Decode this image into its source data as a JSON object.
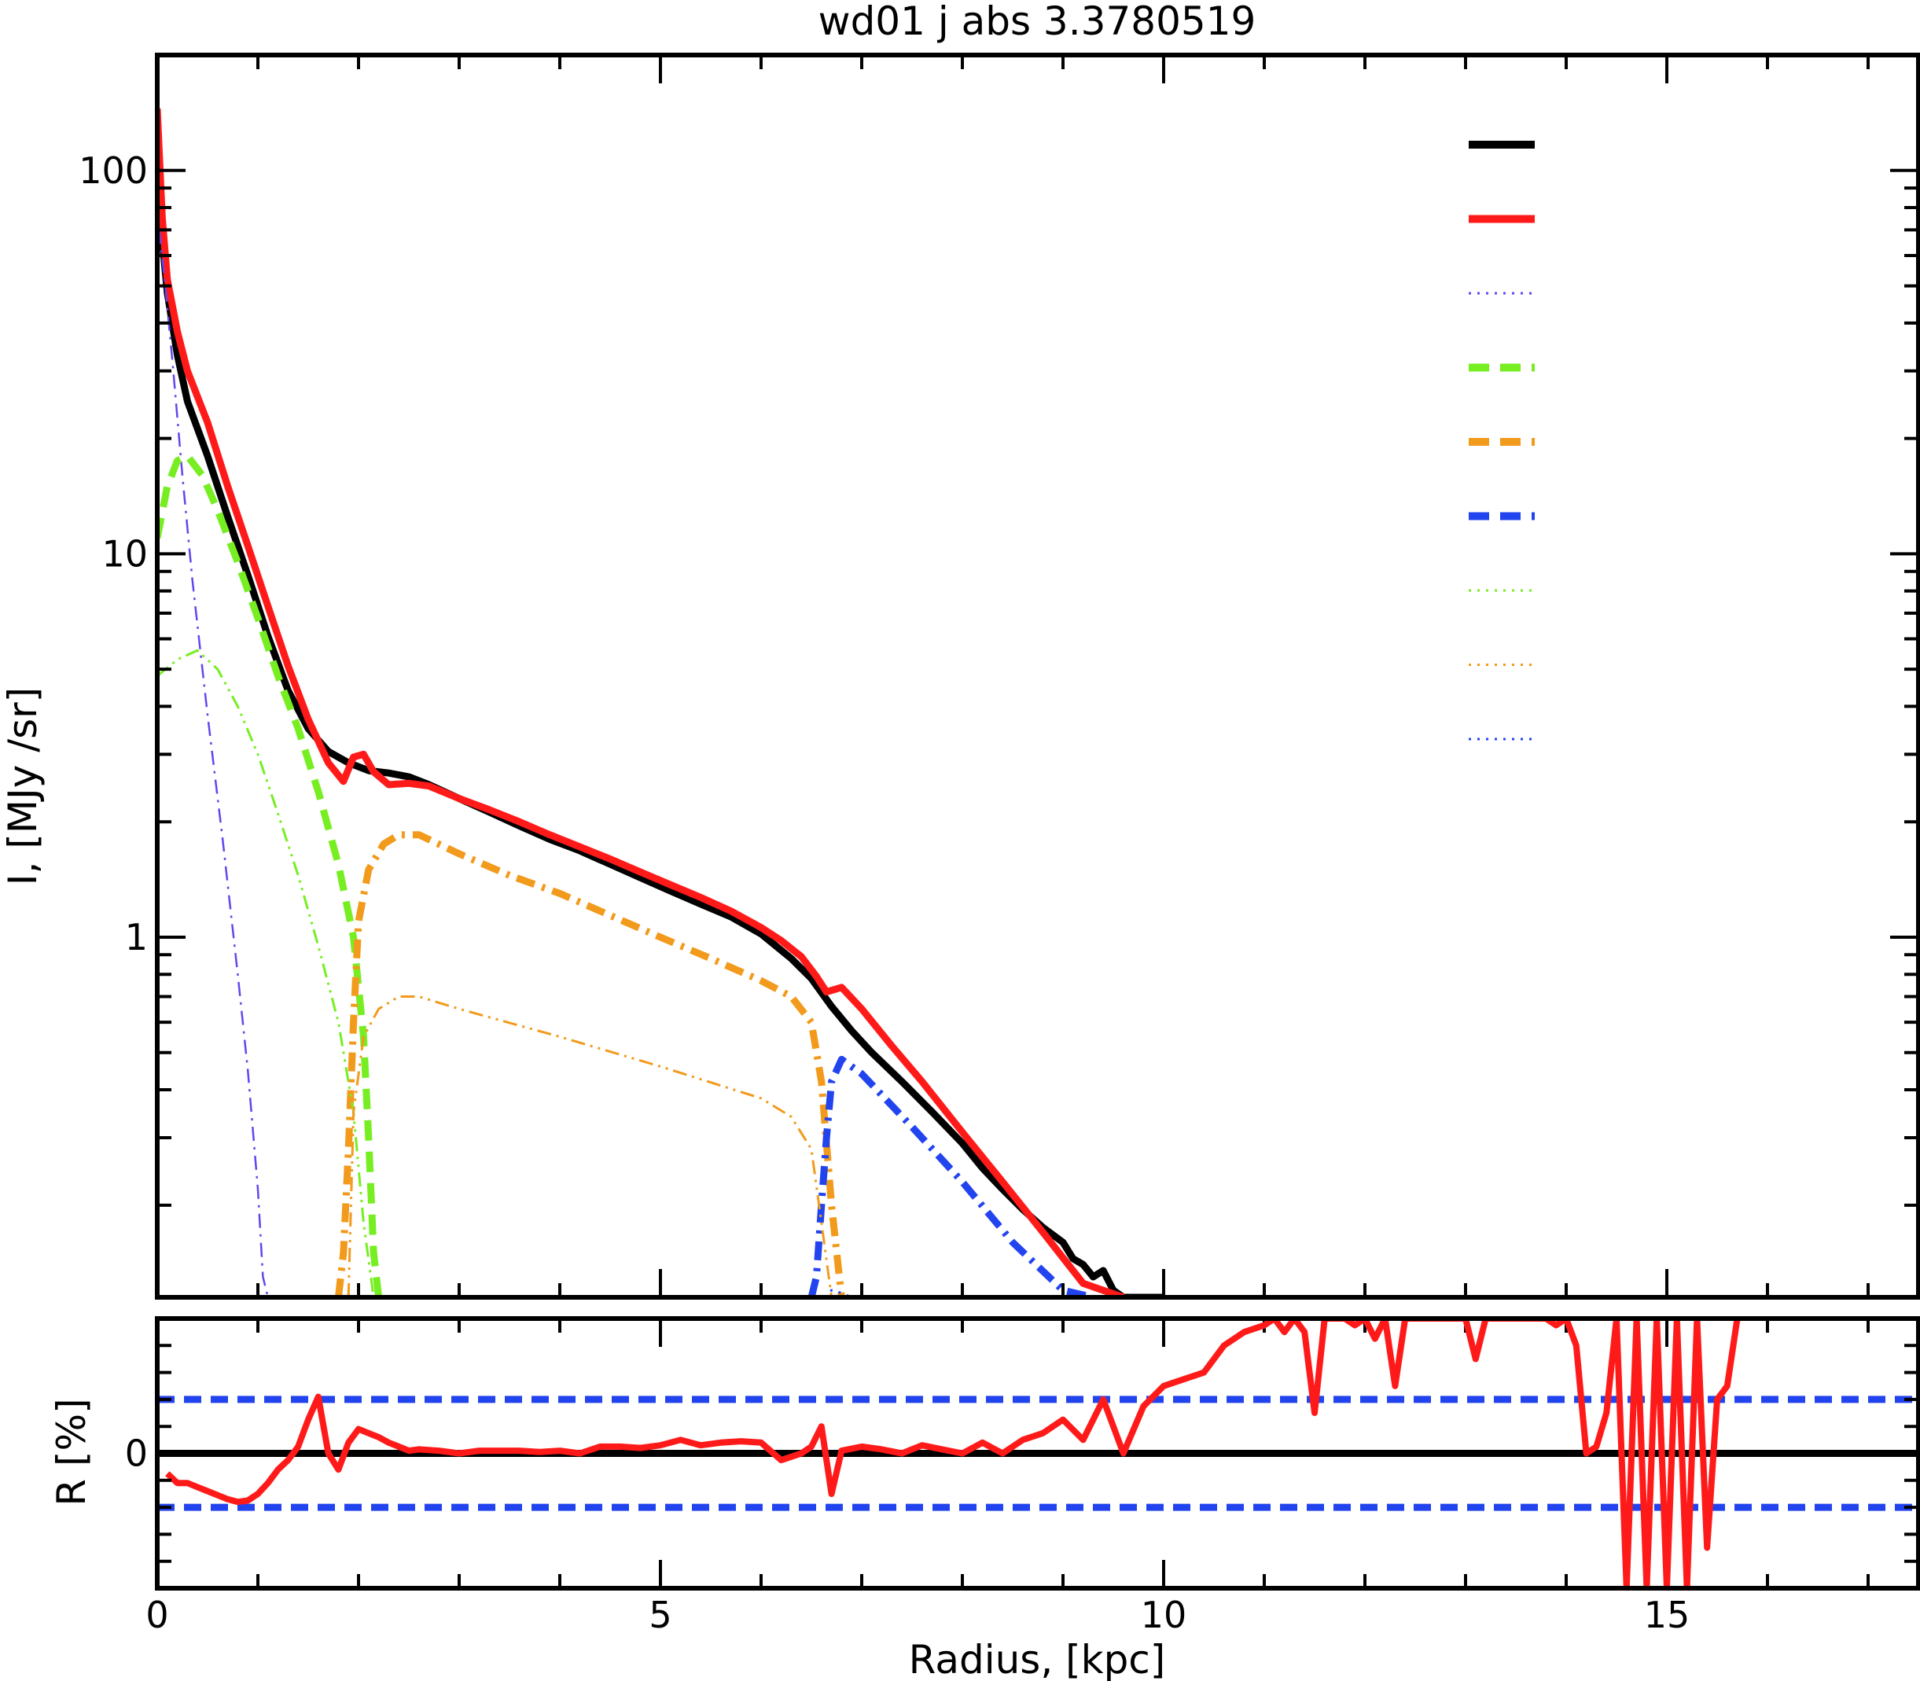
{
  "chart_data": {
    "type": "line",
    "title": "wd01 j abs 3.3780519",
    "xlabel": "Radius, [kpc]",
    "main_panel": {
      "ylabel": "I, [MJy /sr]",
      "yscale": "log",
      "xlim": [
        0,
        17.5
      ],
      "ylim": [
        0.115,
        200
      ],
      "ytick_labels": [
        "1",
        "10",
        "100"
      ],
      "legend_location": "top-right",
      "legend_swatches": [
        {
          "color": "#000000",
          "dash": "solid",
          "width": 10
        },
        {
          "color": "#ff1a1a",
          "dash": "solid",
          "width": 10
        },
        {
          "color": "#6644ee",
          "dash": "dotted-fine",
          "width": 3
        },
        {
          "color": "#77ee22",
          "dash": "dashed",
          "width": 10
        },
        {
          "color": "#f29a1c",
          "dash": "dashed",
          "width": 10
        },
        {
          "color": "#2244ee",
          "dash": "dashed",
          "width": 10
        },
        {
          "color": "#77ee22",
          "dash": "dotted-fine",
          "width": 3
        },
        {
          "color": "#f29a1c",
          "dash": "dotted-fine",
          "width": 3
        },
        {
          "color": "#2244ee",
          "dash": "dotted-fine",
          "width": 3
        }
      ],
      "series": [
        {
          "color": "#000000",
          "dash": "solid",
          "width": 9,
          "x": [
            0.0,
            0.1,
            0.2,
            0.3,
            0.5,
            0.7,
            0.9,
            1.1,
            1.3,
            1.5,
            1.7,
            1.9,
            2.1,
            2.3,
            2.5,
            2.7,
            3.0,
            3.3,
            3.6,
            3.9,
            4.2,
            4.5,
            4.8,
            5.1,
            5.4,
            5.7,
            6.0,
            6.3,
            6.5,
            6.7,
            6.9,
            7.1,
            7.4,
            7.7,
            8.0,
            8.2,
            8.4,
            8.6,
            8.8,
            9.0,
            9.1,
            9.2,
            9.3,
            9.4,
            9.5,
            9.6,
            9.7,
            9.8,
            9.9,
            10.0
          ],
          "y": [
            90,
            48,
            33,
            25,
            18,
            12.5,
            8.8,
            6.1,
            4.4,
            3.5,
            3.05,
            2.85,
            2.72,
            2.68,
            2.62,
            2.5,
            2.3,
            2.12,
            1.95,
            1.8,
            1.68,
            1.55,
            1.43,
            1.32,
            1.22,
            1.13,
            1.02,
            0.88,
            0.78,
            0.66,
            0.57,
            0.5,
            0.42,
            0.35,
            0.29,
            0.25,
            0.22,
            0.195,
            0.175,
            0.16,
            0.145,
            0.14,
            0.13,
            0.135,
            0.12,
            0.11,
            0.112,
            0.112,
            0.108,
            0.108
          ]
        },
        {
          "color": "#ff1a1a",
          "dash": "solid",
          "width": 9,
          "x": [
            0.0,
            0.02,
            0.05,
            0.1,
            0.2,
            0.3,
            0.5,
            0.7,
            0.9,
            1.1,
            1.3,
            1.5,
            1.7,
            1.85,
            1.95,
            2.05,
            2.15,
            2.3,
            2.5,
            2.7,
            3.0,
            3.3,
            3.6,
            3.9,
            4.2,
            4.5,
            4.8,
            5.1,
            5.4,
            5.7,
            6.0,
            6.2,
            6.4,
            6.55,
            6.65,
            6.8,
            7.0,
            7.3,
            7.6,
            8.0,
            8.4,
            8.8,
            9.2,
            9.6
          ],
          "y": [
            145,
            110,
            75,
            52,
            38,
            30,
            22,
            15,
            10.5,
            7.3,
            5.1,
            3.7,
            2.85,
            2.55,
            2.95,
            3.0,
            2.7,
            2.5,
            2.52,
            2.48,
            2.3,
            2.15,
            2.0,
            1.85,
            1.72,
            1.6,
            1.48,
            1.37,
            1.27,
            1.17,
            1.06,
            0.98,
            0.89,
            0.79,
            0.72,
            0.74,
            0.65,
            0.52,
            0.42,
            0.31,
            0.23,
            0.17,
            0.125,
            0.1
          ]
        },
        {
          "color": "#6644ee",
          "dash": "dashdot-fine",
          "width": 2.5,
          "x": [
            0.02,
            0.08,
            0.15,
            0.25,
            0.35,
            0.5,
            0.65,
            0.8,
            0.9,
            1.0,
            1.05,
            1.1
          ],
          "y": [
            70,
            50,
            32,
            16,
            8.5,
            3.8,
            1.8,
            0.8,
            0.45,
            0.22,
            0.13,
            0.1
          ]
        },
        {
          "color": "#77ee22",
          "dash": "dashed",
          "width": 9,
          "x": [
            0.0,
            0.1,
            0.2,
            0.3,
            0.45,
            0.6,
            0.8,
            1.0,
            1.2,
            1.4,
            1.6,
            1.8,
            1.95,
            2.05,
            2.1,
            2.15,
            2.2
          ],
          "y": [
            11,
            15,
            17.5,
            18,
            16,
            13,
            9.5,
            6.8,
            4.8,
            3.5,
            2.4,
            1.55,
            1.0,
            0.55,
            0.3,
            0.15,
            0.1
          ]
        },
        {
          "color": "#f29a1c",
          "dash": "dashdot",
          "width": 9,
          "x": [
            1.8,
            1.85,
            1.9,
            1.95,
            2.0,
            2.1,
            2.25,
            2.4,
            2.6,
            3.0,
            3.5,
            4.0,
            4.5,
            5.0,
            5.5,
            6.0,
            6.3,
            6.5,
            6.6,
            6.7,
            6.8
          ],
          "y": [
            0.1,
            0.15,
            0.28,
            0.6,
            1.1,
            1.5,
            1.75,
            1.85,
            1.85,
            1.65,
            1.45,
            1.3,
            1.14,
            1.0,
            0.88,
            0.77,
            0.7,
            0.6,
            0.42,
            0.2,
            0.1
          ]
        },
        {
          "color": "#2244ee",
          "dash": "dashdot",
          "width": 9,
          "x": [
            6.5,
            6.55,
            6.6,
            6.65,
            6.7,
            6.8,
            7.0,
            7.5,
            8.0,
            8.5,
            9.0,
            9.3
          ],
          "y": [
            0.1,
            0.13,
            0.2,
            0.3,
            0.42,
            0.48,
            0.44,
            0.32,
            0.23,
            0.16,
            0.12,
            0.1
          ]
        },
        {
          "color": "#77ee22",
          "dash": "dashdotdot-fine",
          "width": 3,
          "x": [
            0.0,
            0.2,
            0.4,
            0.6,
            0.8,
            1.0,
            1.2,
            1.4,
            1.6,
            1.8,
            1.95,
            2.05,
            2.15
          ],
          "y": [
            4.8,
            5.3,
            5.6,
            5.0,
            4.0,
            3.0,
            2.1,
            1.45,
            0.95,
            0.6,
            0.35,
            0.18,
            0.1
          ]
        },
        {
          "color": "#f29a1c",
          "dash": "dashdotdot-fine",
          "width": 3,
          "x": [
            1.9,
            1.95,
            2.05,
            2.2,
            2.4,
            2.6,
            3.0,
            4.0,
            5.0,
            6.0,
            6.3,
            6.5,
            6.6,
            6.7
          ],
          "y": [
            0.1,
            0.35,
            0.55,
            0.65,
            0.7,
            0.7,
            0.65,
            0.55,
            0.46,
            0.38,
            0.34,
            0.28,
            0.18,
            0.1
          ]
        },
        {
          "color": "#2244ee",
          "dash": "dotted-fine",
          "width": 3,
          "x": [
            6.55,
            6.6,
            6.65,
            6.7,
            6.8,
            6.9,
            7.0
          ],
          "y": [
            0.1,
            0.11,
            0.115,
            0.12,
            0.118,
            0.11,
            0.1
          ]
        }
      ]
    },
    "residual_panel": {
      "ylabel": "R [%]",
      "ytick_labels": [
        "0"
      ],
      "ylim": [
        -1,
        1
      ],
      "reference_lines": [
        {
          "y": 0,
          "color": "#000000",
          "dash": "solid"
        },
        {
          "y": 0.4,
          "color": "#2244ee",
          "dash": "dashed"
        },
        {
          "y": -0.4,
          "color": "#2244ee",
          "dash": "dashed"
        }
      ],
      "residual_series": {
        "color": "#ff1a1a",
        "x": [
          0.1,
          0.2,
          0.3,
          0.4,
          0.5,
          0.6,
          0.7,
          0.8,
          0.9,
          1.0,
          1.1,
          1.2,
          1.3,
          1.4,
          1.5,
          1.6,
          1.7,
          1.8,
          1.9,
          2.0,
          2.1,
          2.2,
          2.3,
          2.4,
          2.5,
          2.6,
          2.8,
          3.0,
          3.2,
          3.4,
          3.6,
          3.8,
          4.0,
          4.2,
          4.4,
          4.6,
          4.8,
          5.0,
          5.2,
          5.4,
          5.6,
          5.8,
          6.0,
          6.2,
          6.4,
          6.5,
          6.6,
          6.7,
          6.8,
          7.0,
          7.2,
          7.4,
          7.6,
          7.8,
          8.0,
          8.2,
          8.4,
          8.6,
          8.8,
          9.0,
          9.2,
          9.4,
          9.6,
          9.8,
          10.0,
          10.2,
          10.4,
          10.6,
          10.8,
          11.0,
          11.1,
          11.2,
          11.3,
          11.4,
          11.5,
          11.6,
          11.7,
          11.8,
          11.9,
          12.0,
          12.1,
          12.2,
          12.3,
          12.4,
          13.0,
          13.1,
          13.2,
          13.3,
          13.8,
          13.9,
          14.0,
          14.1,
          14.2,
          14.3,
          14.4,
          14.5,
          14.6,
          14.7,
          14.8,
          14.9,
          15.0,
          15.1,
          15.2,
          15.3,
          15.4,
          15.5,
          15.6,
          15.7
        ],
        "y": [
          -0.15,
          -0.22,
          -0.22,
          -0.25,
          -0.28,
          -0.31,
          -0.34,
          -0.36,
          -0.35,
          -0.3,
          -0.22,
          -0.12,
          -0.05,
          0.05,
          0.25,
          0.42,
          0.0,
          -0.12,
          0.08,
          0.18,
          0.15,
          0.12,
          0.08,
          0.05,
          0.02,
          0.03,
          0.02,
          0.0,
          0.02,
          0.02,
          0.02,
          0.01,
          0.02,
          0.0,
          0.05,
          0.05,
          0.04,
          0.06,
          0.1,
          0.06,
          0.08,
          0.09,
          0.08,
          -0.05,
          0.0,
          0.05,
          0.2,
          -0.3,
          0.02,
          0.05,
          0.03,
          0.0,
          0.06,
          0.03,
          0.0,
          0.08,
          0.0,
          0.1,
          0.15,
          0.25,
          0.1,
          0.4,
          0.0,
          0.35,
          0.5,
          0.55,
          0.6,
          0.8,
          0.9,
          0.95,
          1.0,
          0.9,
          1.0,
          0.9,
          0.3,
          1.0,
          1.0,
          1.0,
          0.95,
          1.0,
          0.85,
          1.0,
          0.5,
          1.0,
          1.0,
          0.7,
          1.0,
          1.0,
          1.0,
          0.95,
          1.0,
          0.8,
          0.0,
          0.05,
          0.3,
          1.0,
          -1.0,
          1.0,
          -1.0,
          1.0,
          -1.0,
          1.0,
          -1.0,
          1.0,
          -0.7,
          0.4,
          0.5,
          1.0
        ]
      }
    },
    "xtick_labels": [
      "0",
      "5",
      "10",
      "15"
    ],
    "grid": false
  }
}
